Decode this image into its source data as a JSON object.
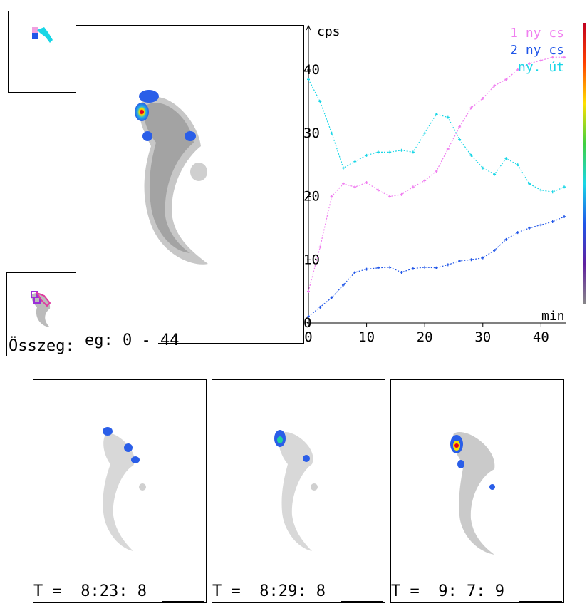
{
  "main_panel": {
    "sum_label": "eg: 0 - 44"
  },
  "thumb_bottom": {
    "label": "Összeg:"
  },
  "chart_data": {
    "type": "line",
    "title": "",
    "ylabel": "cps",
    "xlabel": "min",
    "xlim": [
      0,
      44
    ],
    "ylim": [
      0,
      40
    ],
    "xticks": [
      0,
      10,
      20,
      30,
      40
    ],
    "yticks": [
      0,
      10,
      20,
      30,
      40
    ],
    "legend_position": "top-right",
    "series": [
      {
        "name": "1 ny cs",
        "color": "#f07ff0",
        "x": [
          0,
          2,
          4,
          6,
          8,
          10,
          12,
          14,
          16,
          18,
          20,
          22,
          24,
          26,
          28,
          30,
          32,
          34,
          36,
          38,
          40,
          42,
          44
        ],
        "y": [
          5,
          12,
          20,
          22,
          21.5,
          22.2,
          21,
          20,
          20.3,
          21.5,
          22.5,
          24,
          27.5,
          31,
          34,
          35.5,
          37.5,
          38.5,
          40,
          41,
          41.5,
          42,
          42
        ]
      },
      {
        "name": "2 ny cs",
        "color": "#1f55e8",
        "x": [
          0,
          2,
          4,
          6,
          8,
          10,
          12,
          14,
          16,
          18,
          20,
          22,
          24,
          26,
          28,
          30,
          32,
          34,
          36,
          38,
          40,
          42,
          44
        ],
        "y": [
          1,
          2.5,
          4,
          6,
          8,
          8.5,
          8.7,
          8.8,
          8,
          8.6,
          8.8,
          8.7,
          9.2,
          9.8,
          10,
          10.3,
          11.5,
          13.2,
          14.3,
          15,
          15.5,
          16,
          16.8
        ]
      },
      {
        "name": "ny. út",
        "color": "#19d6e6",
        "x": [
          0,
          2,
          4,
          6,
          8,
          10,
          12,
          14,
          16,
          18,
          20,
          22,
          24,
          26,
          28,
          30,
          32,
          34,
          36,
          38,
          40,
          42,
          44
        ],
        "y": [
          38.5,
          35,
          30,
          24.5,
          25.5,
          26.5,
          27,
          27,
          27.3,
          27,
          30,
          33,
          32.5,
          29,
          26.5,
          24.5,
          23.5,
          26,
          25,
          22,
          21,
          20.7,
          21.5
        ]
      }
    ]
  },
  "frames": [
    {
      "time_label": "T =  8:23: 8"
    },
    {
      "time_label": "T =  8:29: 8"
    },
    {
      "time_label": "T =  9: 7: 9"
    }
  ],
  "colors": {
    "blob_core": "#e8001a",
    "blob_mid": "#f4e000",
    "blob_outer": "#1fb0e8",
    "blob_blue": "#2a5ee8"
  }
}
